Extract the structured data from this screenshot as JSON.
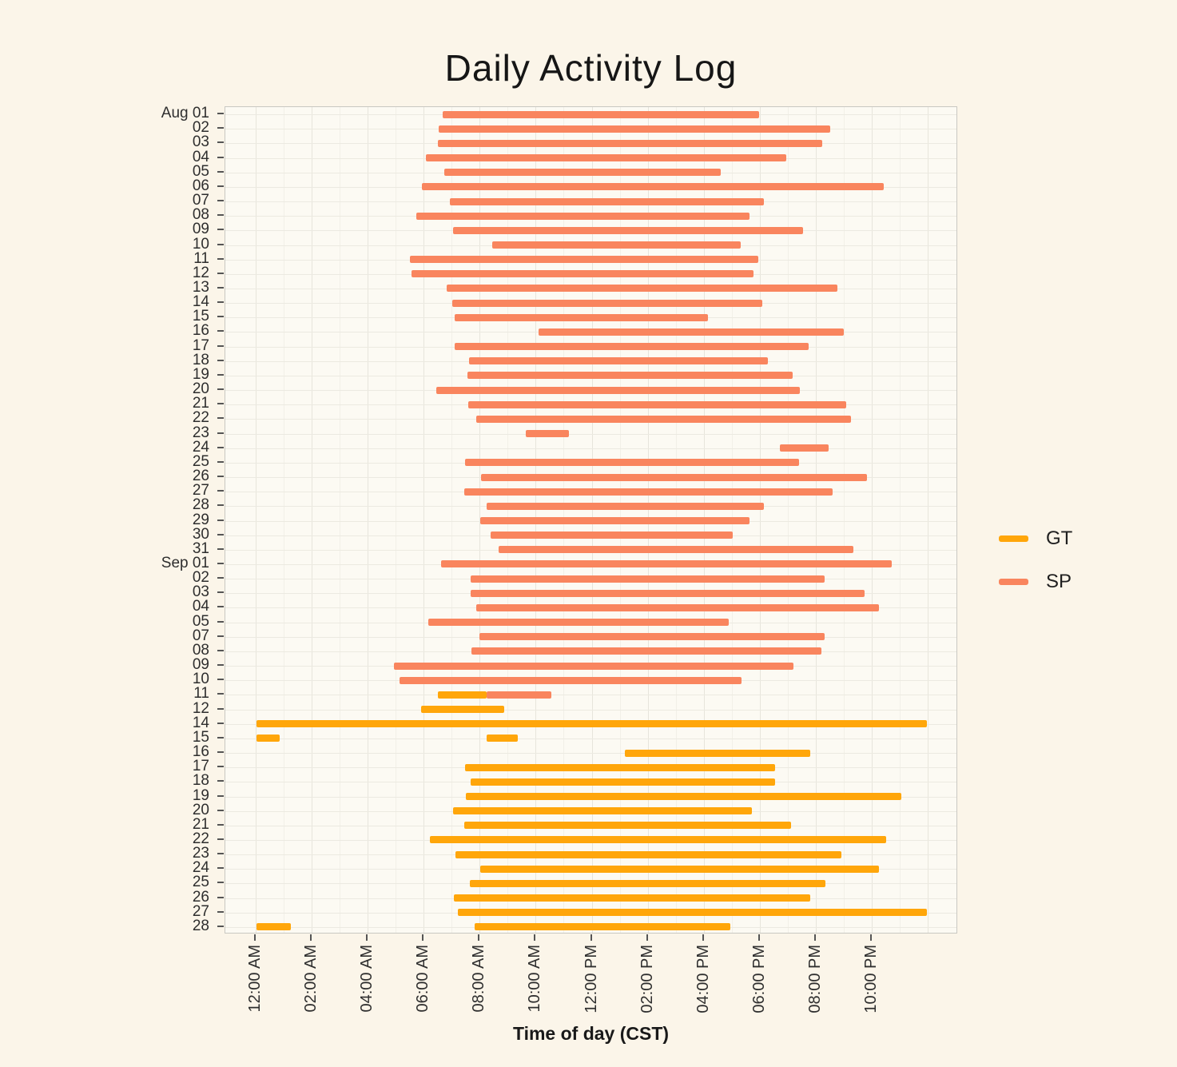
{
  "title": "Daily Activity Log",
  "chart_data": {
    "type": "gantt",
    "title": "Daily Activity Log",
    "xlabel": "Time of day (CST)",
    "x_tick_labels": [
      "12:00 AM",
      "02:00 AM",
      "04:00 AM",
      "06:00 AM",
      "08:00 AM",
      "10:00 AM",
      "12:00 PM",
      "02:00 PM",
      "04:00 PM",
      "06:00 PM",
      "08:00 PM",
      "10:00 PM"
    ],
    "x_tick_hours": [
      0,
      2,
      4,
      6,
      8,
      10,
      12,
      14,
      16,
      18,
      20,
      22
    ],
    "x_domain_hours": [
      -1.08,
      25.08
    ],
    "grid": "on",
    "legend_position": "right",
    "legend": [
      {
        "label": "GT",
        "color": "#ffa60a"
      },
      {
        "label": "SP",
        "color": "#f9855e"
      }
    ],
    "colors": {
      "GT": "#ffa60a",
      "SP": "#f9855e"
    },
    "rows": [
      {
        "label": "Aug 01",
        "bars": [
          {
            "series": "SP",
            "start": 6.67,
            "end": 17.98
          }
        ]
      },
      {
        "label": "02",
        "bars": [
          {
            "series": "SP",
            "start": 6.55,
            "end": 20.52
          }
        ]
      },
      {
        "label": "03",
        "bars": [
          {
            "series": "SP",
            "start": 6.5,
            "end": 20.23
          }
        ]
      },
      {
        "label": "04",
        "bars": [
          {
            "series": "SP",
            "start": 6.07,
            "end": 18.95
          }
        ]
      },
      {
        "label": "05",
        "bars": [
          {
            "series": "SP",
            "start": 6.73,
            "end": 16.61
          }
        ]
      },
      {
        "label": "06",
        "bars": [
          {
            "series": "SP",
            "start": 5.93,
            "end": 22.43
          }
        ]
      },
      {
        "label": "07",
        "bars": [
          {
            "series": "SP",
            "start": 6.95,
            "end": 18.15
          }
        ]
      },
      {
        "label": "08",
        "bars": [
          {
            "series": "SP",
            "start": 5.73,
            "end": 17.64
          }
        ]
      },
      {
        "label": "09",
        "bars": [
          {
            "series": "SP",
            "start": 7.04,
            "end": 19.55
          }
        ]
      },
      {
        "label": "10",
        "bars": [
          {
            "series": "SP",
            "start": 8.46,
            "end": 17.33
          }
        ]
      },
      {
        "label": "11",
        "bars": [
          {
            "series": "SP",
            "start": 5.5,
            "end": 17.95
          }
        ]
      },
      {
        "label": "12",
        "bars": [
          {
            "series": "SP",
            "start": 5.56,
            "end": 17.78
          }
        ]
      },
      {
        "label": "13",
        "bars": [
          {
            "series": "SP",
            "start": 6.81,
            "end": 20.78
          }
        ]
      },
      {
        "label": "14",
        "bars": [
          {
            "series": "SP",
            "start": 7.01,
            "end": 18.1
          }
        ]
      },
      {
        "label": "15",
        "bars": [
          {
            "series": "SP",
            "start": 7.12,
            "end": 16.16
          }
        ]
      },
      {
        "label": "16",
        "bars": [
          {
            "series": "SP",
            "start": 10.09,
            "end": 21.0
          }
        ]
      },
      {
        "label": "17",
        "bars": [
          {
            "series": "SP",
            "start": 7.1,
            "end": 19.75
          }
        ]
      },
      {
        "label": "18",
        "bars": [
          {
            "series": "SP",
            "start": 7.61,
            "end": 18.3
          }
        ]
      },
      {
        "label": "19",
        "bars": [
          {
            "series": "SP",
            "start": 7.55,
            "end": 19.18
          }
        ]
      },
      {
        "label": "20",
        "bars": [
          {
            "series": "SP",
            "start": 6.44,
            "end": 19.44
          }
        ]
      },
      {
        "label": "21",
        "bars": [
          {
            "series": "SP",
            "start": 7.58,
            "end": 21.09
          }
        ]
      },
      {
        "label": "22",
        "bars": [
          {
            "series": "SP",
            "start": 7.89,
            "end": 21.26
          }
        ]
      },
      {
        "label": "23",
        "bars": [
          {
            "series": "SP",
            "start": 9.66,
            "end": 11.2
          }
        ]
      },
      {
        "label": "24",
        "bars": [
          {
            "series": "SP",
            "start": 18.72,
            "end": 20.46
          }
        ]
      },
      {
        "label": "25",
        "bars": [
          {
            "series": "SP",
            "start": 7.49,
            "end": 19.41
          }
        ]
      },
      {
        "label": "26",
        "bars": [
          {
            "series": "SP",
            "start": 8.04,
            "end": 21.83
          }
        ]
      },
      {
        "label": "27",
        "bars": [
          {
            "series": "SP",
            "start": 7.44,
            "end": 20.6
          }
        ]
      },
      {
        "label": "28",
        "bars": [
          {
            "series": "SP",
            "start": 8.24,
            "end": 18.15
          }
        ]
      },
      {
        "label": "29",
        "bars": [
          {
            "series": "SP",
            "start": 8.01,
            "end": 17.64
          }
        ]
      },
      {
        "label": "30",
        "bars": [
          {
            "series": "SP",
            "start": 8.38,
            "end": 17.04
          }
        ]
      },
      {
        "label": "31",
        "bars": [
          {
            "series": "SP",
            "start": 8.69,
            "end": 21.35
          }
        ]
      },
      {
        "label": "Sep 01",
        "bars": [
          {
            "series": "SP",
            "start": 6.61,
            "end": 22.71
          }
        ]
      },
      {
        "label": "02",
        "bars": [
          {
            "series": "SP",
            "start": 7.69,
            "end": 20.32
          }
        ]
      },
      {
        "label": "03",
        "bars": [
          {
            "series": "SP",
            "start": 7.69,
            "end": 21.74
          }
        ]
      },
      {
        "label": "04",
        "bars": [
          {
            "series": "SP",
            "start": 7.89,
            "end": 22.26
          }
        ]
      },
      {
        "label": "05",
        "bars": [
          {
            "series": "SP",
            "start": 6.16,
            "end": 16.9
          }
        ]
      },
      {
        "label": "07",
        "bars": [
          {
            "series": "SP",
            "start": 7.98,
            "end": 20.32
          }
        ]
      },
      {
        "label": "08",
        "bars": [
          {
            "series": "SP",
            "start": 7.72,
            "end": 20.21
          }
        ]
      },
      {
        "label": "09",
        "bars": [
          {
            "series": "SP",
            "start": 4.93,
            "end": 19.21
          }
        ]
      },
      {
        "label": "10",
        "bars": [
          {
            "series": "SP",
            "start": 5.13,
            "end": 17.36
          }
        ]
      },
      {
        "label": "11",
        "bars": [
          {
            "series": "GT",
            "start": 6.5,
            "end": 8.26
          },
          {
            "series": "SP",
            "start": 8.26,
            "end": 10.57
          }
        ]
      },
      {
        "label": "12",
        "bars": [
          {
            "series": "GT",
            "start": 5.9,
            "end": 8.89
          }
        ]
      },
      {
        "label": "14",
        "bars": [
          {
            "series": "GT",
            "start": 0.03,
            "end": 23.97
          }
        ]
      },
      {
        "label": "15",
        "bars": [
          {
            "series": "GT",
            "start": 0.03,
            "end": 0.85
          },
          {
            "series": "GT",
            "start": 8.26,
            "end": 9.35
          }
        ]
      },
      {
        "label": "16",
        "bars": [
          {
            "series": "GT",
            "start": 13.19,
            "end": 19.81
          }
        ]
      },
      {
        "label": "17",
        "bars": [
          {
            "series": "GT",
            "start": 7.49,
            "end": 18.55
          }
        ]
      },
      {
        "label": "18",
        "bars": [
          {
            "series": "GT",
            "start": 7.69,
            "end": 18.55
          }
        ]
      },
      {
        "label": "19",
        "bars": [
          {
            "series": "GT",
            "start": 7.52,
            "end": 23.06
          }
        ]
      },
      {
        "label": "20",
        "bars": [
          {
            "series": "GT",
            "start": 7.04,
            "end": 17.73
          }
        ]
      },
      {
        "label": "21",
        "bars": [
          {
            "series": "GT",
            "start": 7.44,
            "end": 19.12
          }
        ]
      },
      {
        "label": "22",
        "bars": [
          {
            "series": "GT",
            "start": 6.21,
            "end": 22.51
          }
        ]
      },
      {
        "label": "23",
        "bars": [
          {
            "series": "GT",
            "start": 7.15,
            "end": 20.92
          }
        ]
      },
      {
        "label": "24",
        "bars": [
          {
            "series": "GT",
            "start": 8.01,
            "end": 22.26
          }
        ]
      },
      {
        "label": "25",
        "bars": [
          {
            "series": "GT",
            "start": 7.64,
            "end": 20.35
          }
        ]
      },
      {
        "label": "26",
        "bars": [
          {
            "series": "GT",
            "start": 7.07,
            "end": 19.81
          }
        ]
      },
      {
        "label": "27",
        "bars": [
          {
            "series": "GT",
            "start": 7.21,
            "end": 23.97
          }
        ]
      },
      {
        "label": "28",
        "bars": [
          {
            "series": "GT",
            "start": 0.03,
            "end": 1.25
          },
          {
            "series": "GT",
            "start": 7.81,
            "end": 16.96
          }
        ]
      }
    ]
  }
}
